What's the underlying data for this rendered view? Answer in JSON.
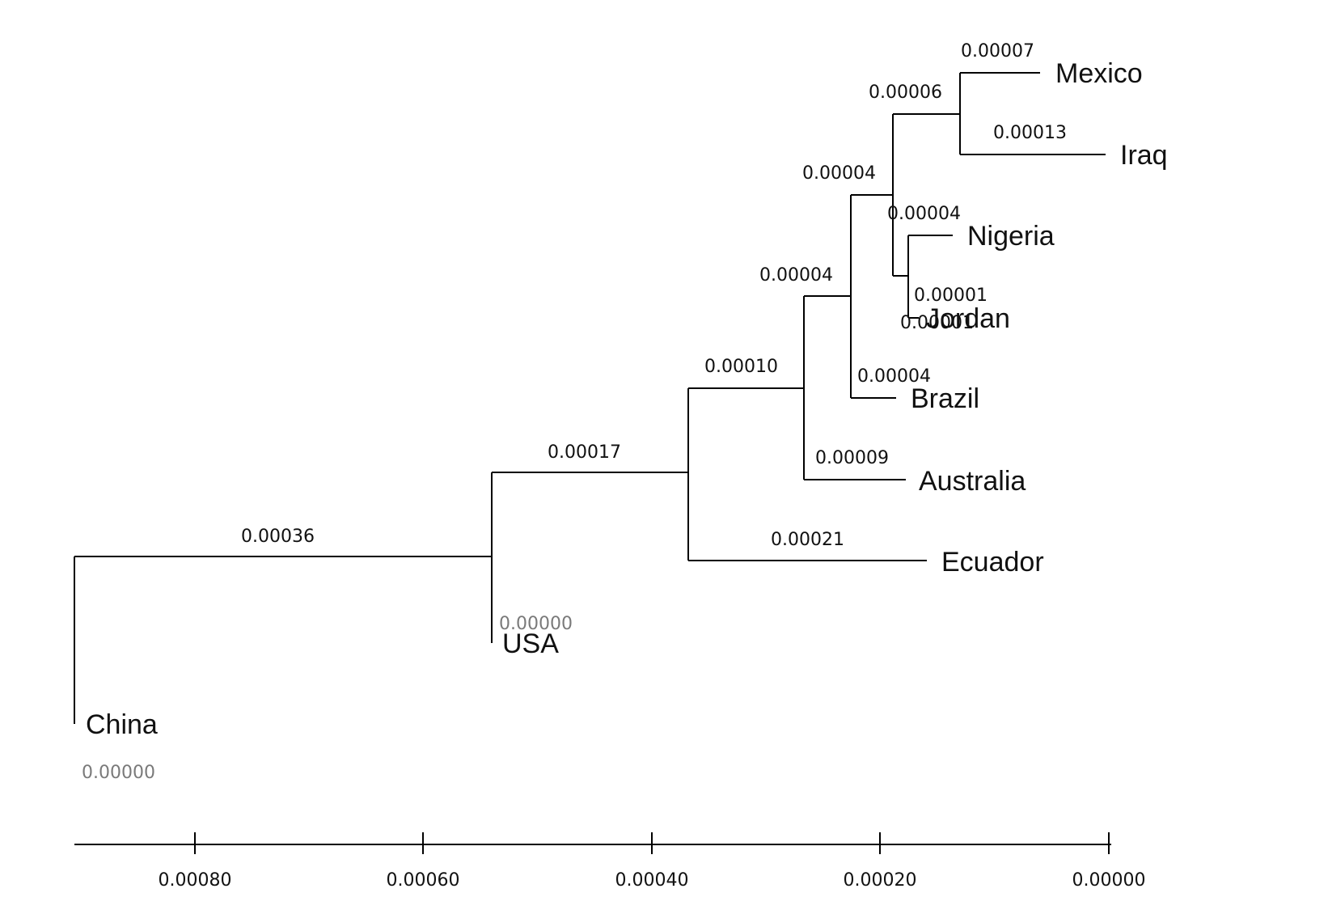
{
  "chart_data": {
    "type": "tree",
    "orientation": "horizontal, root at left, scale increasing to the left",
    "taxa": [
      "Mexico",
      "Iraq",
      "Nigeria",
      "Jordan",
      "Brazil",
      "Australia",
      "Ecuador",
      "USA",
      "China"
    ],
    "branches": [
      {
        "id": "root-cluster",
        "length_label": "0.00036"
      },
      {
        "id": "ecuador-cluster",
        "length_label": "0.00017"
      },
      {
        "id": "australia-cluster",
        "length_label": "0.00010"
      },
      {
        "id": "brazil-cluster",
        "length_label": "0.00004"
      },
      {
        "id": "mexico-nigeria-cluster",
        "length_label": "0.00004"
      },
      {
        "id": "mexico-iraq-cluster",
        "length_label": "0.00006"
      },
      {
        "id": "nigeria-jordan-cluster",
        "length_label": "0.00004"
      },
      {
        "id": "Mexico",
        "length_label": "0.00007"
      },
      {
        "id": "Iraq",
        "length_label": "0.00013"
      },
      {
        "id": "Nigeria",
        "length_label": "0.00004"
      },
      {
        "id": "Jordan",
        "length_label": "0.00001"
      },
      {
        "id": "Jordan-overlap",
        "length_label": "0.00001"
      },
      {
        "id": "Brazil",
        "length_label": "0.00004"
      },
      {
        "id": "Australia",
        "length_label": "0.00009"
      },
      {
        "id": "Ecuador",
        "length_label": "0.00021"
      },
      {
        "id": "USA",
        "length_label": "0.00000"
      },
      {
        "id": "China",
        "length_label": "0.00000"
      }
    ],
    "axis": {
      "ticks": [
        "0.00080",
        "0.00060",
        "0.00040",
        "0.00020",
        "0.00000"
      ]
    }
  }
}
